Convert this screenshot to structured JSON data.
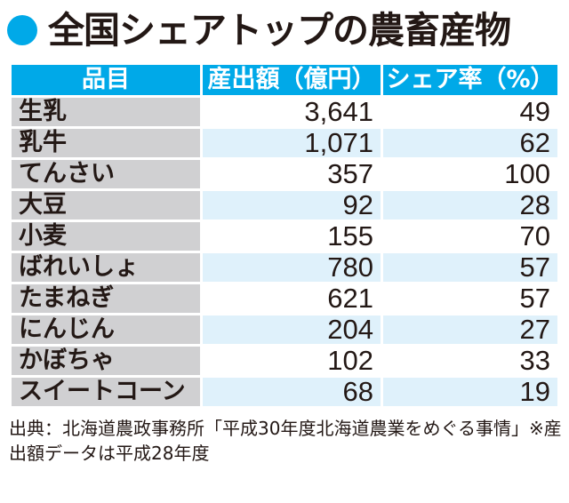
{
  "title": "全国シェアトップの農畜産物",
  "colors": {
    "accent": "#00a9e8",
    "row_alt": "#dff1fb",
    "name_col": "#d0d0d2"
  },
  "table": {
    "headers": [
      "品目",
      "産出額（億円）",
      "シェア率（%）"
    ],
    "rows": [
      [
        "生乳",
        "3,641",
        "49"
      ],
      [
        "乳牛",
        "1,071",
        "62"
      ],
      [
        "てんさい",
        "357",
        "100"
      ],
      [
        "大豆",
        "92",
        "28"
      ],
      [
        "小麦",
        "155",
        "70"
      ],
      [
        "ばれいしょ",
        "780",
        "57"
      ],
      [
        "たまねぎ",
        "621",
        "57"
      ],
      [
        "にんじん",
        "204",
        "27"
      ],
      [
        "かぼちゃ",
        "102",
        "33"
      ],
      [
        "スイートコーン",
        "68",
        "19"
      ]
    ]
  },
  "note": "出典：北海道農政事務所「平成30年度北海道農業をめぐる事情」※産出額データは平成28年度"
}
